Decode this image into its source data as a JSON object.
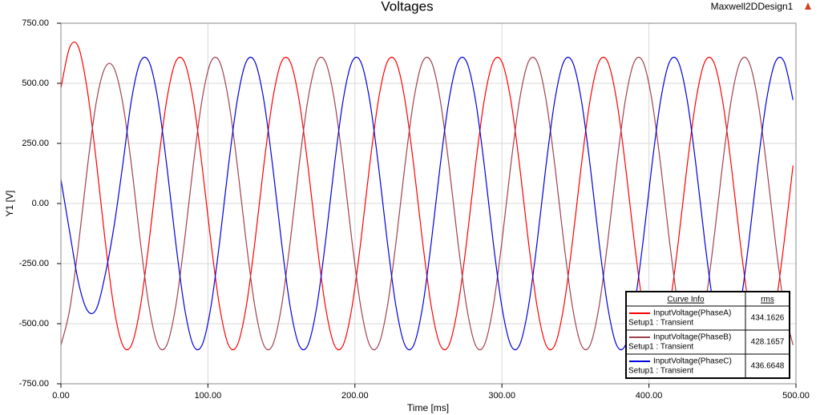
{
  "chart_data": {
    "type": "line",
    "title": "Voltages",
    "design_name": "Maxwell2DDesign1",
    "x_label": "Time [ms]",
    "y_label": "Y1 [V]",
    "x": [
      0,
      6,
      12,
      18,
      24,
      30,
      36,
      42,
      48,
      54,
      60,
      66,
      72,
      78,
      84,
      90,
      96,
      102,
      108,
      114,
      120,
      126,
      132,
      138,
      144,
      150,
      156,
      162,
      168,
      174,
      180,
      186,
      192,
      198,
      204,
      210,
      216,
      222,
      228,
      234,
      240,
      246,
      252,
      258,
      264,
      270,
      276,
      282,
      288,
      294,
      300,
      306,
      312,
      318,
      324,
      330,
      336,
      342,
      348,
      354,
      360,
      366,
      372,
      378,
      384,
      390,
      396,
      402,
      408,
      414,
      420,
      426,
      432,
      438,
      444,
      450,
      456,
      462,
      468,
      474,
      480,
      486,
      492,
      498
    ],
    "series": [
      {
        "name": "InputVoltage(PhaseA)",
        "setup": "Setup1 : Transient",
        "rms": 434.1626,
        "color": "#ff0000",
        "values": [
          480,
          650,
          650,
          470,
          180,
          -150,
          -431,
          -589,
          -589,
          -431,
          -158,
          158,
          431,
          589,
          589,
          431,
          158,
          -158,
          -431,
          -589,
          -589,
          -431,
          -158,
          158,
          431,
          589,
          589,
          431,
          158,
          -158,
          -431,
          -589,
          -589,
          -431,
          -158,
          158,
          431,
          589,
          589,
          431,
          158,
          -158,
          -431,
          -589,
          -589,
          -431,
          -158,
          158,
          431,
          589,
          589,
          431,
          158,
          -158,
          -431,
          -589,
          -589,
          -431,
          -158,
          158,
          431,
          589,
          589,
          431,
          158,
          -158,
          -431,
          -589,
          -589,
          -431,
          -158,
          158,
          431,
          589,
          589,
          431,
          158,
          -158,
          -431,
          -589,
          -589,
          -431,
          -158,
          158
        ]
      },
      {
        "name": "InputVoltage(PhaseB)",
        "setup": "Setup1 : Transient",
        "rms": 428.1657,
        "color": "#a0404f",
        "values": [
          -590,
          -440,
          -170,
          150,
          420,
          565,
          565,
          420,
          158,
          -158,
          -431,
          -589,
          -589,
          -431,
          -158,
          158,
          431,
          589,
          589,
          431,
          158,
          -158,
          -431,
          -589,
          -589,
          -431,
          -158,
          158,
          431,
          589,
          589,
          431,
          158,
          -158,
          -431,
          -589,
          -589,
          -431,
          -158,
          158,
          431,
          589,
          589,
          431,
          158,
          -158,
          -431,
          -589,
          -589,
          -431,
          -158,
          158,
          431,
          589,
          589,
          431,
          158,
          -158,
          -431,
          -589,
          -589,
          -431,
          -158,
          158,
          431,
          589,
          589,
          431,
          158,
          -158,
          -431,
          -589,
          -589,
          -431,
          -158,
          158,
          431,
          589,
          589,
          431,
          158,
          -158,
          -431,
          -589
        ]
      },
      {
        "name": "InputVoltage(PhaseC)",
        "setup": "Setup1 : Transient",
        "rms": 436.6648,
        "color": "#0000dd",
        "values": [
          100,
          -120,
          -330,
          -445,
          -440,
          -300,
          -100,
          158,
          431,
          589,
          589,
          431,
          158,
          -158,
          -431,
          -589,
          -589,
          -431,
          -158,
          158,
          431,
          589,
          589,
          431,
          158,
          -158,
          -431,
          -589,
          -589,
          -431,
          -158,
          158,
          431,
          589,
          589,
          431,
          158,
          -158,
          -431,
          -589,
          -589,
          -431,
          -158,
          158,
          431,
          589,
          589,
          431,
          158,
          -158,
          -431,
          -589,
          -589,
          -431,
          -158,
          158,
          431,
          589,
          589,
          431,
          158,
          -158,
          -431,
          -589,
          -589,
          -431,
          -158,
          158,
          431,
          589,
          589,
          431,
          158,
          -158,
          -431,
          -589,
          -589,
          -431,
          -158,
          158,
          431,
          589,
          589,
          431
        ]
      }
    ],
    "legend_title": "Curve Info",
    "legend_value_header": "rms",
    "xlim": [
      0,
      500
    ],
    "xticks": [
      {
        "value": 0,
        "label": "0.00"
      },
      {
        "value": 100,
        "label": "100.00"
      },
      {
        "value": 200,
        "label": "200.00"
      },
      {
        "value": 300,
        "label": "300.00"
      },
      {
        "value": 400,
        "label": "400.00"
      },
      {
        "value": 500,
        "label": "500.00"
      }
    ],
    "ylim": [
      -750,
      750
    ],
    "yticks": [
      {
        "value": -750,
        "label": "-750.00"
      },
      {
        "value": -500,
        "label": "-500.00"
      },
      {
        "value": -250,
        "label": "-250.00"
      },
      {
        "value": 0,
        "label": "0.00"
      },
      {
        "value": 250,
        "label": "250.00"
      },
      {
        "value": 500,
        "label": "500.00"
      },
      {
        "value": 750,
        "label": "750.00"
      }
    ],
    "grid": true
  }
}
